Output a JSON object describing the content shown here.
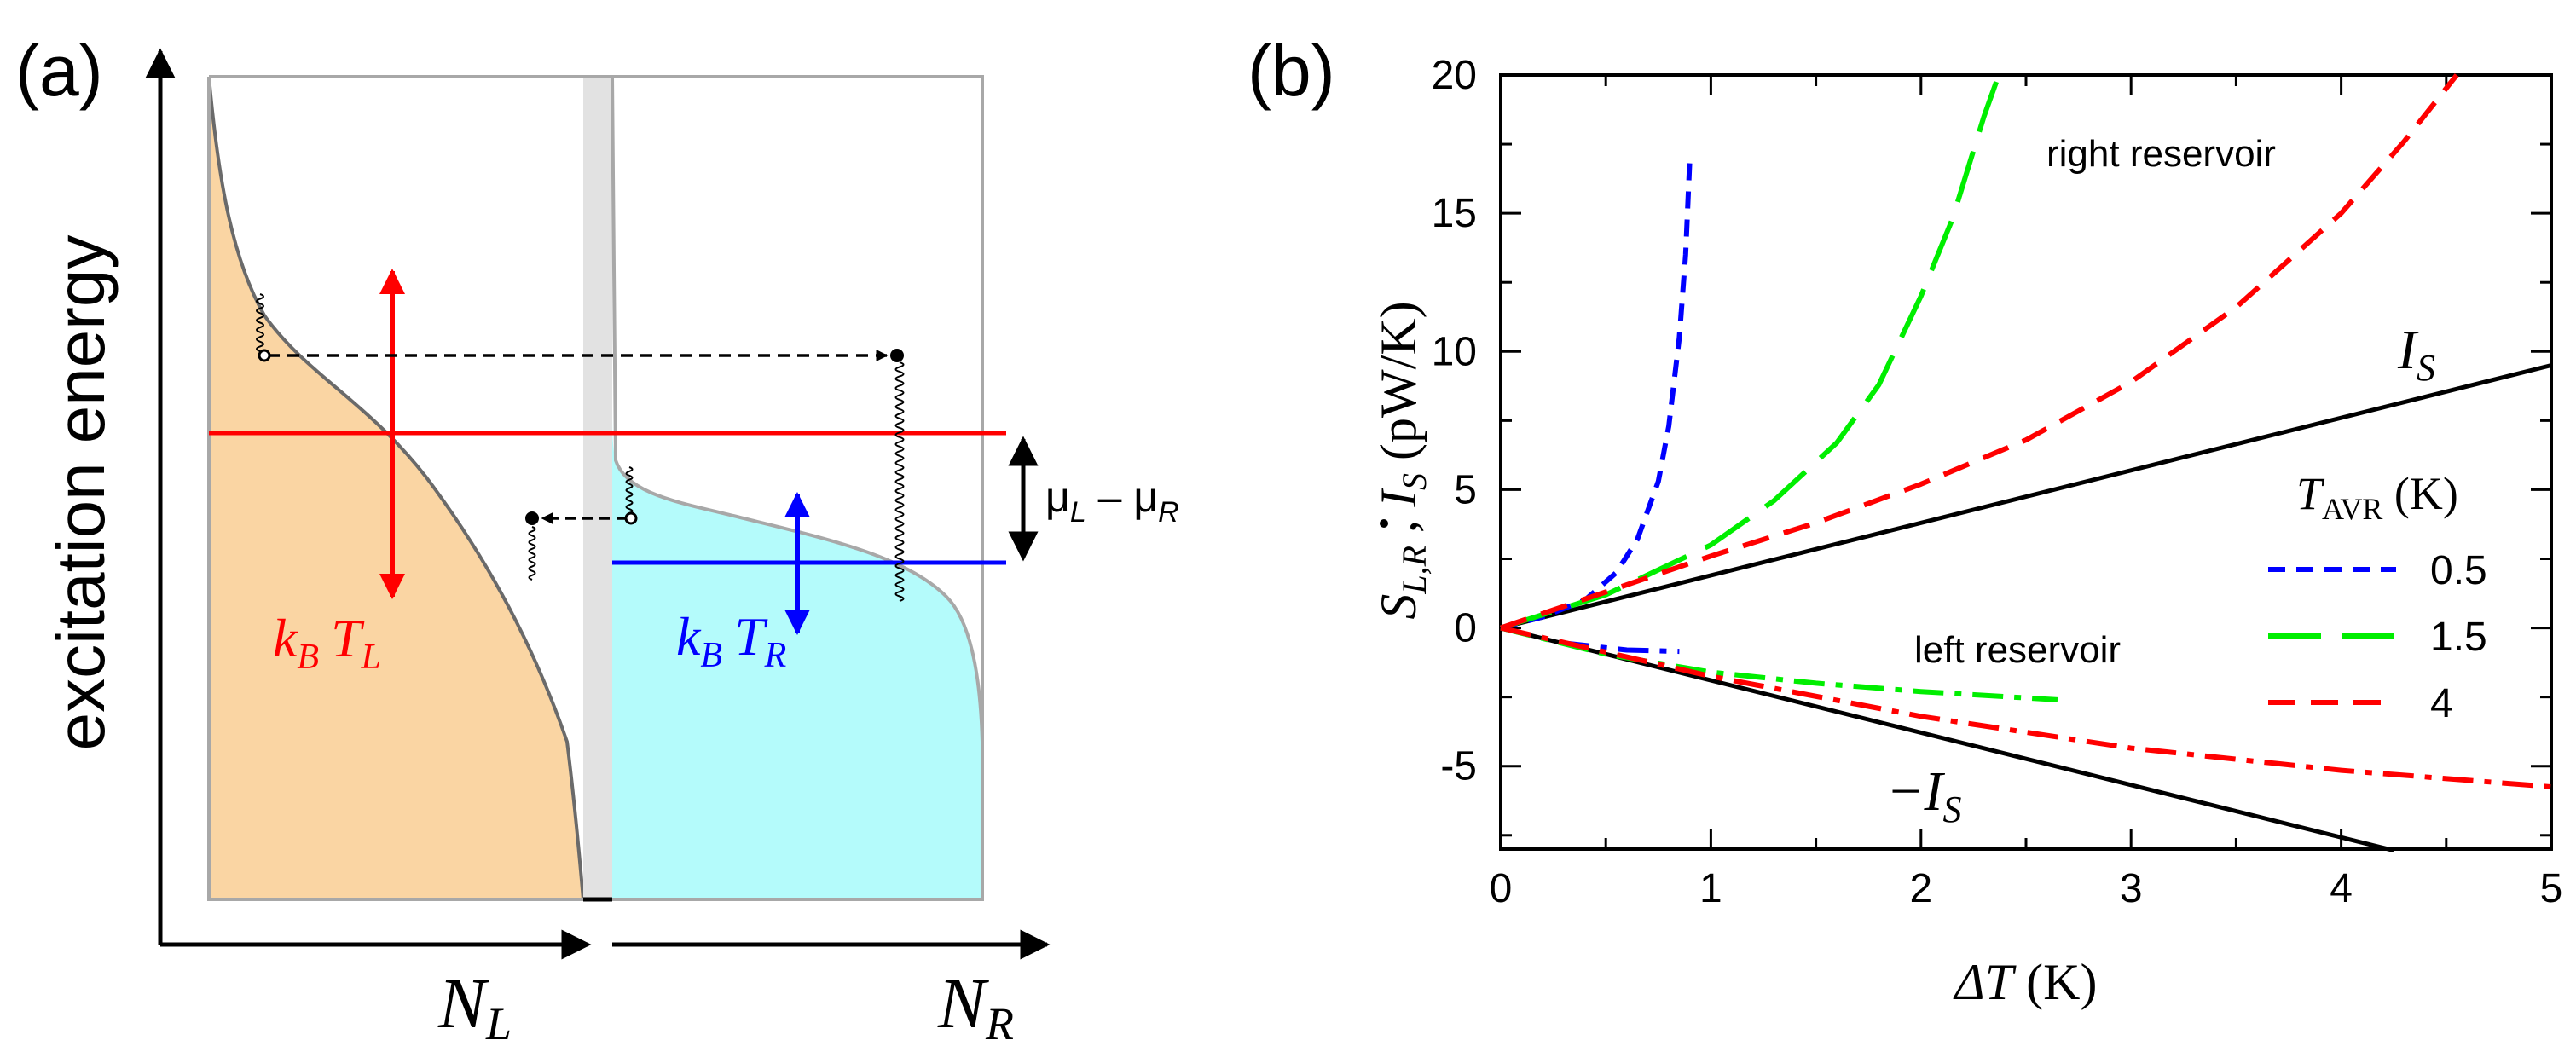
{
  "panel_a": {
    "label": "(a)",
    "y_axis_label": "excitation energy",
    "x_label_left": "N",
    "x_label_left_sub": "L",
    "x_label_right": "N",
    "x_label_right_sub": "R",
    "left_temp": {
      "k": "k",
      "kb_sub": "B",
      "t": "T",
      "t_sub": "L"
    },
    "right_temp": {
      "k": "k",
      "kb_sub": "B",
      "t": "T",
      "t_sub": "R"
    },
    "mu_label": {
      "mu1": "μ",
      "sub1": "L",
      "minus": " – ",
      "mu2": "μ",
      "sub2": "R"
    },
    "colors": {
      "left_fill": "#fad5a3",
      "right_fill": "#b4fbfb",
      "mu_left": "#ff0000",
      "mu_right": "#0000ff",
      "frame": "#a8a8a8",
      "barrier": "#e2e2e2"
    }
  },
  "chart_data": {
    "type": "line",
    "panel_label": "(b)",
    "xlabel": "ΔT (K)",
    "xlabel_delta": "ΔT",
    "xlabel_unit": " (K)",
    "ylabel": "Ṡ_L,R , I_S (pW/K)",
    "ylabel_parts": {
      "s": "S",
      "s_sub": "L,R",
      "sep": " ,  ",
      "i": "I",
      "i_sub": "S",
      "unit": "  (pW/K)"
    },
    "xlim": [
      0,
      5
    ],
    "ylim": [
      -8,
      20
    ],
    "xticks": [
      "0",
      "1",
      "2",
      "3",
      "4",
      "5"
    ],
    "xtick_values": [
      0,
      1,
      2,
      3,
      4,
      5
    ],
    "yticks": [
      "-5",
      "0",
      "5",
      "10",
      "15",
      "20"
    ],
    "ytick_values": [
      -5,
      0,
      5,
      10,
      15,
      20
    ],
    "annotations": {
      "right_reservoir": "right reservoir",
      "left_reservoir": "left reservoir",
      "is_label": "I",
      "is_sub": "S",
      "neg_is_label": "−I",
      "neg_is_sub": "S"
    },
    "legend": {
      "title": "T",
      "title_sub": "AVR",
      "title_unit": " (K)",
      "entries": [
        {
          "label": "0.5",
          "color": "#0000ff",
          "dash": "short"
        },
        {
          "label": "1.5",
          "color": "#00ee00",
          "dash": "long"
        },
        {
          "label": "4",
          "color": "#ff0000",
          "dash": "medium"
        }
      ]
    },
    "series": [
      {
        "name": "I_S",
        "color": "#000000",
        "style": "solid",
        "x": [
          0,
          5
        ],
        "y": [
          0,
          9.5
        ]
      },
      {
        "name": "-I_S",
        "color": "#000000",
        "style": "solid",
        "x": [
          0,
          4.25
        ],
        "y": [
          0,
          -8.05
        ]
      },
      {
        "name": "right reservoir T_AVR=0.5",
        "color": "#0000ff",
        "style": "short",
        "x": [
          0,
          0.2,
          0.4,
          0.55,
          0.65,
          0.75,
          0.8,
          0.85,
          0.88,
          0.9
        ],
        "y": [
          0,
          0.4,
          1.0,
          2.0,
          3.2,
          5.3,
          7.3,
          10.5,
          13.5,
          17
        ]
      },
      {
        "name": "right reservoir T_AVR=1.5",
        "color": "#00ee00",
        "style": "long",
        "x": [
          0,
          0.5,
          1.0,
          1.3,
          1.6,
          1.8,
          2.0,
          2.15,
          2.3,
          2.37
        ],
        "y": [
          0,
          1.2,
          3.0,
          4.6,
          6.7,
          8.8,
          12.0,
          14.8,
          18.5,
          20
        ]
      },
      {
        "name": "right reservoir T_AVR=4",
        "color": "#ff0000",
        "style": "medium",
        "x": [
          0,
          0.5,
          1.0,
          1.5,
          2.0,
          2.5,
          3.0,
          3.5,
          4.0,
          4.3,
          4.55
        ],
        "y": [
          0,
          1.3,
          2.6,
          3.8,
          5.2,
          6.8,
          8.9,
          11.6,
          15.0,
          17.6,
          20
        ]
      },
      {
        "name": "left reservoir T_AVR=0.5",
        "color": "#0000ff",
        "style": "dashdot",
        "x": [
          0,
          0.3,
          0.6,
          0.85
        ],
        "y": [
          0,
          -0.55,
          -0.8,
          -0.85
        ]
      },
      {
        "name": "left reservoir T_AVR=1.5",
        "color": "#00ee00",
        "style": "dashdot",
        "x": [
          0,
          0.5,
          1.0,
          1.5,
          2.0,
          2.65
        ],
        "y": [
          0,
          -0.95,
          -1.6,
          -2.0,
          -2.3,
          -2.6
        ]
      },
      {
        "name": "left reservoir T_AVR=4",
        "color": "#ff0000",
        "style": "dashdot",
        "x": [
          0,
          1.0,
          2.0,
          3.0,
          4.0,
          5.0
        ],
        "y": [
          0,
          -1.75,
          -3.2,
          -4.35,
          -5.15,
          -5.75
        ]
      }
    ]
  }
}
